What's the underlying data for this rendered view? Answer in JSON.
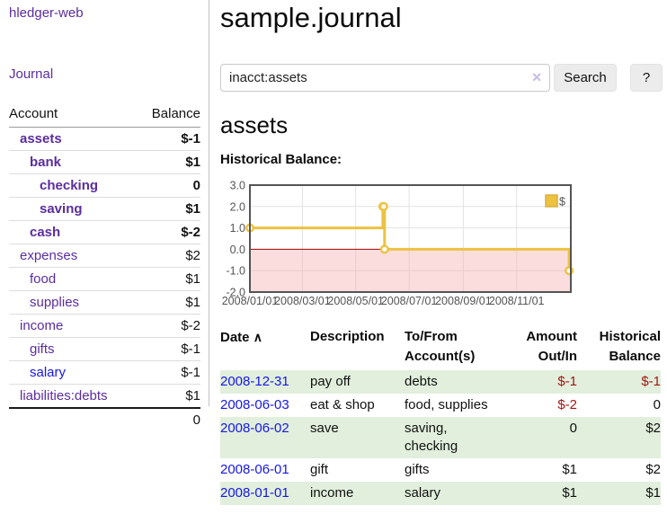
{
  "sidebar": {
    "title": "hledger-web",
    "journal_link": "Journal",
    "table": {
      "account_header": "Account",
      "balance_header": "Balance",
      "rows": [
        {
          "name": "assets",
          "balance": "$-1"
        },
        {
          "name": "bank",
          "balance": "$1"
        },
        {
          "name": "checking",
          "balance": "0"
        },
        {
          "name": "saving",
          "balance": "$1"
        },
        {
          "name": "cash",
          "balance": "$-2"
        },
        {
          "name": "expenses",
          "balance": "$2"
        },
        {
          "name": "food",
          "balance": "$1"
        },
        {
          "name": "supplies",
          "balance": "$1"
        },
        {
          "name": "income",
          "balance": "$-2"
        },
        {
          "name": "gifts",
          "balance": "$-1"
        },
        {
          "name": "salary",
          "balance": "$-1"
        },
        {
          "name": "liabilities:debts",
          "balance": "$1"
        }
      ],
      "total": "0"
    }
  },
  "main": {
    "title": "sample.journal",
    "search": {
      "value": "inacct:assets",
      "clear_icon": "✕",
      "search_button": "Search",
      "help_button": "?"
    },
    "account_heading": "assets",
    "section_label": "Historical Balance:"
  },
  "chart_data": {
    "type": "line",
    "title": "Historical Balance",
    "line_shape": "step-after",
    "series": [
      {
        "name": "$",
        "color": "#edc240",
        "points": [
          [
            "2008-01-01",
            1
          ],
          [
            "2008-06-01",
            2
          ],
          [
            "2008-06-02",
            2
          ],
          [
            "2008-06-03",
            0
          ],
          [
            "2008-12-31",
            -1
          ]
        ]
      }
    ],
    "x_tick_labels": [
      "2008/01/01",
      "2008/03/01",
      "2008/05/01",
      "2008/07/01",
      "2008/09/01",
      "2008/11/01"
    ],
    "y_tick_labels": [
      "3.0",
      "2.0",
      "1.0",
      "0.0",
      "-1.0",
      "-2.0"
    ],
    "ylim": [
      -2,
      3
    ],
    "x_range_days": 367,
    "grid": true,
    "legend_position": "top-right",
    "negative_region": true
  },
  "register": {
    "headers": {
      "date": "Date",
      "sort_icon": "∧",
      "description": "Description",
      "account": "To/From Account(s)",
      "amount": "Amount Out/In",
      "balance": "Historical Balance"
    },
    "rows": [
      {
        "date": "2008-12-31",
        "description": "pay off",
        "account": "debts",
        "amount": "$-1",
        "balance": "$-1"
      },
      {
        "date": "2008-06-03",
        "description": "eat & shop",
        "account": "food, supplies",
        "amount": "$-2",
        "balance": "0"
      },
      {
        "date": "2008-06-02",
        "description": "save",
        "account": "saving, checking",
        "amount": "0",
        "balance": "$2"
      },
      {
        "date": "2008-06-01",
        "description": "gift",
        "account": "gifts",
        "amount": "$1",
        "balance": "$2"
      },
      {
        "date": "2008-01-01",
        "description": "income",
        "account": "salary",
        "amount": "$1",
        "balance": "$1"
      }
    ]
  },
  "colors": {
    "link_purple": "#5b2d9e",
    "link_blue": "#1717e6",
    "negative_strong": "#a31515",
    "negative_muted": "#b26d6d",
    "row_green": "#e1efdc",
    "series_yellow": "#edc240",
    "negative_region_pink": "#fadada",
    "zero_line_red": "#a40000",
    "chart_border_gray": "#545454"
  }
}
